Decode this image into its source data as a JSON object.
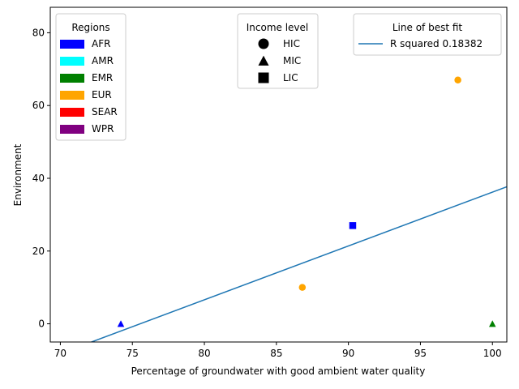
{
  "chart_data": {
    "type": "scatter",
    "title": "",
    "xlabel": "Percentage of groundwater with good ambient water quality",
    "ylabel": "Environment",
    "xlim": [
      69.3,
      101
    ],
    "ylim": [
      -5,
      87
    ],
    "xticks": [
      70,
      75,
      80,
      85,
      90,
      95,
      100
    ],
    "yticks": [
      0,
      20,
      40,
      60,
      80
    ],
    "grid": false,
    "points": [
      {
        "x": 74.2,
        "y": 0,
        "region": "AFR",
        "income": "MIC"
      },
      {
        "x": 86.8,
        "y": 10,
        "region": "EUR",
        "income": "HIC"
      },
      {
        "x": 90.3,
        "y": 27,
        "region": "AFR",
        "income": "LIC"
      },
      {
        "x": 97.6,
        "y": 67,
        "region": "EUR",
        "income": "HIC"
      },
      {
        "x": 100,
        "y": 0,
        "region": "EMR",
        "income": "MIC"
      }
    ],
    "fit_line": {
      "slope": 1.48,
      "intercept": -111.8,
      "color": "#1f77b4"
    },
    "legends": {
      "regions": {
        "title": "Regions",
        "placement": "top-left",
        "items": [
          {
            "label": "AFR",
            "color": "#0000ff"
          },
          {
            "label": "AMR",
            "color": "#00ffff"
          },
          {
            "label": "EMR",
            "color": "#008000"
          },
          {
            "label": "EUR",
            "color": "#ffa500"
          },
          {
            "label": "SEAR",
            "color": "#ff0000"
          },
          {
            "label": "WPR",
            "color": "#800080"
          }
        ]
      },
      "income": {
        "title": "Income level",
        "placement": "top-center",
        "items": [
          {
            "label": "HIC",
            "marker": "circle"
          },
          {
            "label": "MIC",
            "marker": "triangle"
          },
          {
            "label": "LIC",
            "marker": "square"
          }
        ]
      },
      "fit": {
        "title": "Line of best fit",
        "placement": "top-right",
        "items": [
          {
            "label": "R squared 0.18382",
            "color": "#1f77b4"
          }
        ]
      }
    }
  }
}
